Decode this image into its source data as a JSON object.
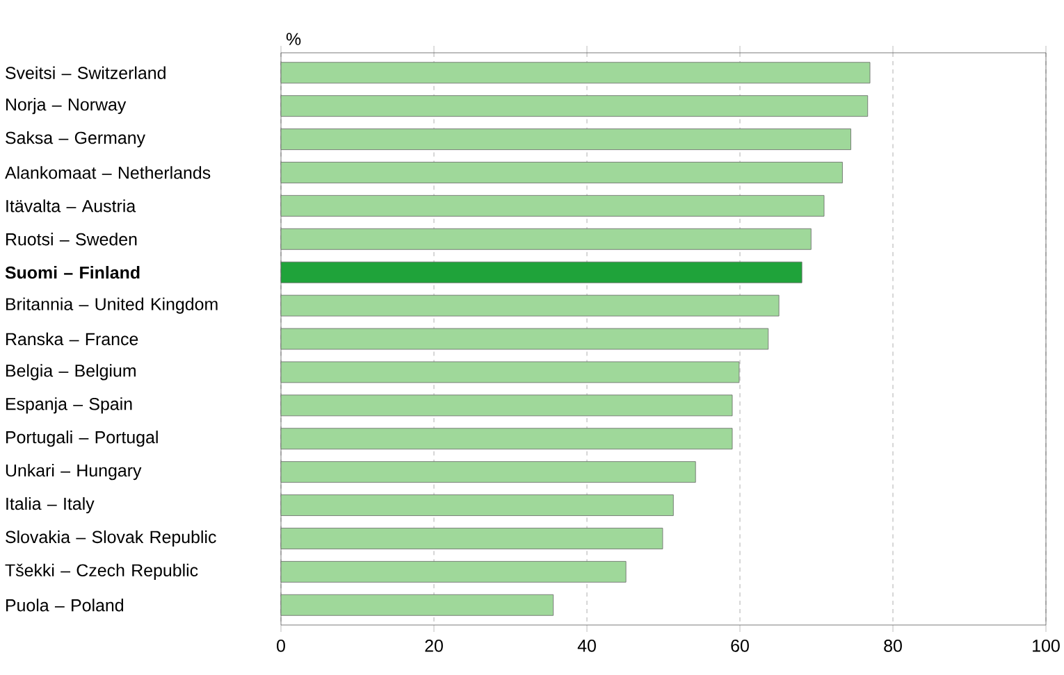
{
  "chart_data": {
    "type": "bar",
    "orientation": "horizontal",
    "xlabel": "%",
    "categories": [
      "Sveitsi – Switzerland",
      "Norja – Norway",
      "Saksa – Germany",
      "Alankomaat – Netherlands",
      "Itävalta – Austria",
      "Ruotsi – Sweden",
      "**Suomi – Finland**",
      "Britannia – United Kingdom",
      "Ranska – France",
      "Belgia – Belgium",
      "Espanja – Spain",
      "Portugali – Portugal",
      "Unkari  – Hungary",
      "Italia – Italy",
      "Slovakia – Slovak Republic",
      "Tšekki – Czech Republic",
      "Puola – Poland"
    ],
    "values": [
      77.0,
      76.7,
      74.5,
      73.4,
      71.0,
      69.3,
      68.1,
      65.1,
      63.7,
      59.9,
      59.0,
      59.0,
      54.2,
      51.3,
      49.9,
      45.1,
      35.6
    ],
    "colors": [
      "#9fd89a",
      "#9fd89a",
      "#9fd89a",
      "#9fd89a",
      "#9fd89a",
      "#9fd89a",
      "#1fa33a",
      "#9fd89a",
      "#9fd89a",
      "#9fd89a",
      "#9fd89a",
      "#9fd89a",
      "#9fd89a",
      "#9fd89a",
      "#9fd89a",
      "#9fd89a",
      "#9fd89a"
    ],
    "xlim": [
      0,
      100
    ],
    "xticks": [
      0,
      20,
      40,
      60,
      80,
      100
    ],
    "grid": "x"
  }
}
